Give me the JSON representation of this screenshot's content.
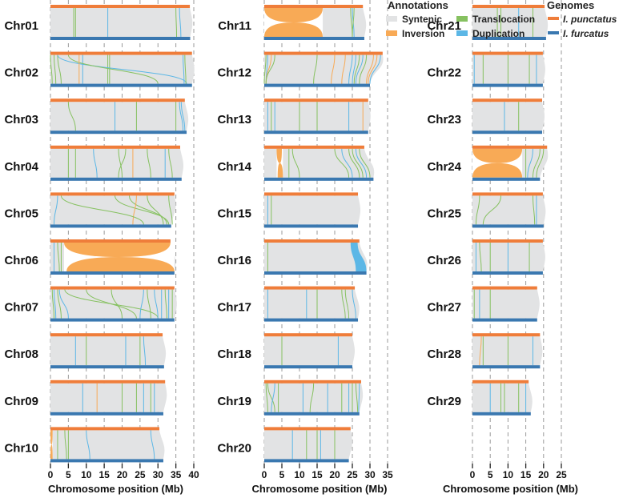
{
  "colors": {
    "top_genome": "#ef7d3a",
    "bottom_genome": "#3a78b0",
    "syntenic": "#e2e3e4",
    "inversion": "#f8aa56",
    "translocation": "#86c160",
    "duplication": "#5cb7e6",
    "grid": "#9a9a9a"
  },
  "legend": {
    "annotations_title": "Annotations",
    "annotations": [
      {
        "key": "S",
        "label": "Syntenic"
      },
      {
        "key": "T",
        "label": "Translocation"
      },
      {
        "key": "I",
        "label": "Inversion"
      },
      {
        "key": "D",
        "label": "Duplication"
      }
    ],
    "genomes_title": "Genomes",
    "genomes": [
      {
        "key": "top",
        "label": "I. punctatus"
      },
      {
        "key": "bottom",
        "label": "I. furcatus"
      }
    ]
  },
  "axis_title": "Chromosome position (Mb)",
  "panels": [
    {
      "ticks": [
        0,
        5,
        10,
        15,
        20,
        25,
        30,
        35,
        40
      ],
      "chromosomes": [
        {
          "name": "Chr01",
          "top": 38.9,
          "bottom": 39,
          "lines": [
            [
              "T",
              6.5,
              6.5
            ],
            [
              "T",
              7,
              7
            ],
            [
              "D",
              16,
              16
            ],
            [
              "T",
              35,
              35.2
            ],
            [
              "D",
              36,
              36.4
            ]
          ]
        },
        {
          "name": "Chr02",
          "top": 39.5,
          "bottom": 39.5,
          "lines": [
            [
              "T",
              0,
              0.5
            ],
            [
              "T",
              1,
              1.5
            ],
            [
              "T",
              2,
              3
            ],
            [
              "D",
              9,
              9
            ],
            [
              "T",
              16,
              16
            ],
            [
              "T",
              16.5,
              16.5
            ],
            [
              "D",
              2,
              38
            ],
            [
              "T",
              5,
              30
            ],
            [
              "I",
              8,
              8
            ],
            [
              "D",
              37,
              37.3
            ],
            [
              "T",
              37.5,
              37.8
            ]
          ]
        },
        {
          "name": "Chr03",
          "top": 37.5,
          "bottom": 38,
          "lines": [
            [
              "T",
              5,
              7
            ],
            [
              "D",
              18,
              18
            ],
            [
              "T",
              24,
              24
            ],
            [
              "T",
              35,
              35
            ],
            [
              "D",
              36,
              37
            ],
            [
              "D",
              36.5,
              37.5
            ]
          ]
        },
        {
          "name": "Chr04",
          "top": 36.2,
          "bottom": 36.6,
          "lines": [
            [
              "T",
              5,
              5
            ],
            [
              "T",
              7,
              7
            ],
            [
              "D",
              12,
              13
            ],
            [
              "T",
              19,
              20
            ],
            [
              "T",
              21,
              19
            ],
            [
              "I",
              23,
              23
            ],
            [
              "T",
              27,
              28
            ],
            [
              "D",
              32,
              32
            ],
            [
              "T",
              33,
              34
            ]
          ]
        },
        {
          "name": "Chr05",
          "top": 34.6,
          "bottom": 33.7,
          "lines": [
            [
              "D",
              2,
              1
            ],
            [
              "T",
              18,
              33
            ],
            [
              "T",
              22,
              32.5
            ],
            [
              "I",
              24,
              23
            ],
            [
              "T",
              27,
              31.5
            ],
            [
              "T",
              33,
              34
            ],
            [
              "T",
              3,
              26
            ]
          ]
        },
        {
          "name": "Chr06",
          "top": 33.5,
          "bottom": 34.6,
          "inversions": [
            [
              3.8,
              33.5,
              4.5,
              34.6
            ]
          ],
          "lines": [
            [
              "D",
              1,
              1
            ],
            [
              "T",
              2,
              2.5
            ],
            [
              "T",
              3,
              3
            ]
          ]
        },
        {
          "name": "Chr07",
          "top": 34.6,
          "bottom": 34.6,
          "lines": [
            [
              "T",
              0.5,
              1
            ],
            [
              "D",
              1,
              1.5
            ],
            [
              "T",
              2,
              3
            ],
            [
              "D",
              2.5,
              5
            ],
            [
              "T",
              4,
              30
            ],
            [
              "T",
              10,
              24
            ],
            [
              "T",
              17,
              20
            ],
            [
              "D",
              26,
              25
            ],
            [
              "T",
              27,
              28
            ],
            [
              "D",
              29,
              30
            ],
            [
              "D",
              31,
              31
            ],
            [
              "T",
              32,
              32.5
            ],
            [
              "D",
              33,
              33
            ],
            [
              "T",
              34,
              34
            ]
          ]
        },
        {
          "name": "Chr08",
          "top": 31.3,
          "bottom": 31.7,
          "lines": [
            [
              "D",
              7,
              7
            ],
            [
              "T",
              10,
              10
            ],
            [
              "D",
              21,
              21
            ],
            [
              "T",
              25,
              25
            ],
            [
              "D",
              26,
              26.5
            ]
          ]
        },
        {
          "name": "Chr09",
          "top": 32,
          "bottom": 31.5,
          "lines": [
            [
              "D",
              9,
              9
            ],
            [
              "I",
              13,
              13
            ],
            [
              "T",
              20,
              20
            ],
            [
              "T",
              24,
              24
            ],
            [
              "D",
              26,
              26
            ],
            [
              "T",
              28,
              28
            ],
            [
              "D",
              29,
              29
            ]
          ]
        },
        {
          "name": "Chr10",
          "top": 30.4,
          "bottom": 31.5,
          "inversions": [
            [
              0,
              0.6,
              0,
              0.6
            ]
          ],
          "lines": [
            [
              "T",
              2,
              2
            ],
            [
              "T",
              4,
              4.5
            ],
            [
              "T",
              5,
              5
            ],
            [
              "D",
              10,
              11
            ],
            [
              "D",
              28,
              29
            ]
          ]
        }
      ]
    },
    {
      "ticks": [
        0,
        5,
        10,
        15,
        20,
        25,
        30,
        35
      ],
      "chromosomes": [
        {
          "name": "Chr11",
          "top": 28,
          "bottom": 28.4,
          "inversions": [
            [
              0,
              16.6,
              0,
              16.6
            ]
          ],
          "lines": [
            [
              "T",
              24.5,
              25
            ],
            [
              "D",
              25,
              25.5
            ],
            [
              "T",
              25.5,
              25
            ]
          ]
        },
        {
          "name": "Chr12",
          "top": 33.6,
          "bottom": 30,
          "lines": [
            [
              "T",
              0.5,
              0
            ],
            [
              "D",
              1,
              0.5
            ],
            [
              "I",
              2,
              0.5
            ],
            [
              "T",
              3,
              0.5
            ],
            [
              "T",
              15,
              14
            ],
            [
              "I",
              20,
              19
            ],
            [
              "I",
              23,
              22
            ],
            [
              "D",
              25,
              24
            ],
            [
              "D",
              26,
              25
            ],
            [
              "T",
              27,
              25.5
            ],
            [
              "D",
              28,
              26
            ],
            [
              "T",
              29,
              27
            ],
            [
              "I",
              31,
              29
            ],
            [
              "I",
              32,
              29.5
            ],
            [
              "D",
              33,
              30
            ]
          ]
        },
        {
          "name": "Chr13",
          "top": 29.5,
          "bottom": 29.5,
          "lines": [
            [
              "D",
              1,
              1
            ],
            [
              "T",
              2,
              2
            ],
            [
              "D",
              3,
              3
            ],
            [
              "T",
              10,
              10
            ],
            [
              "T",
              15,
              15
            ],
            [
              "D",
              24,
              24
            ],
            [
              "I",
              28,
              28
            ]
          ]
        },
        {
          "name": "Chr14",
          "top": 28.4,
          "bottom": 31,
          "inversions": [
            [
              3.5,
              5,
              3.8,
              5.3
            ]
          ],
          "lines": [
            [
              "T",
              7,
              7
            ],
            [
              "T",
              8,
              10
            ],
            [
              "T",
              20,
              24
            ],
            [
              "D",
              22,
              25
            ],
            [
              "T",
              24,
              27
            ],
            [
              "T",
              25,
              28
            ],
            [
              "D",
              26,
              29
            ],
            [
              "T",
              27,
              30
            ]
          ]
        },
        {
          "name": "Chr15",
          "top": 26.6,
          "bottom": 26.6,
          "lines": [
            [
              "D",
              1,
              1
            ],
            [
              "T",
              2,
              2
            ]
          ]
        },
        {
          "name": "Chr16",
          "top": 27,
          "bottom": 29,
          "dups": [
            [
              24.5,
              26.5,
              26,
              29
            ]
          ],
          "lines": [
            [
              "T",
              1,
              1
            ]
          ]
        },
        {
          "name": "Chr17",
          "top": 25.7,
          "bottom": 26.6,
          "lines": [
            [
              "D",
              1,
              1
            ],
            [
              "D",
              12,
              12
            ],
            [
              "T",
              15,
              15
            ],
            [
              "T",
              22,
              23
            ],
            [
              "T",
              23,
              24
            ],
            [
              "D",
              25,
              26
            ]
          ]
        },
        {
          "name": "Chr18",
          "top": 25,
          "bottom": 25,
          "lines": [
            [
              "T",
              5,
              5
            ],
            [
              "D",
              21,
              21
            ]
          ]
        },
        {
          "name": "Chr19",
          "top": 27.5,
          "bottom": 27,
          "lines": [
            [
              "T",
              0.5,
              1
            ],
            [
              "T",
              1,
              3
            ],
            [
              "D",
              3,
              2
            ],
            [
              "T",
              4,
              4
            ],
            [
              "D",
              11,
              11
            ],
            [
              "T",
              14,
              13
            ],
            [
              "D",
              18,
              18
            ],
            [
              "T",
              22,
              22
            ],
            [
              "D",
              24,
              24
            ],
            [
              "T",
              25,
              25
            ],
            [
              "T",
              26,
              26.5
            ],
            [
              "D",
              27,
              26.8
            ]
          ]
        },
        {
          "name": "Chr20",
          "top": 24.5,
          "bottom": 24,
          "lines": [
            [
              "D",
              8,
              8
            ],
            [
              "T",
              12,
              12
            ],
            [
              "T",
              15,
              15
            ],
            [
              "D",
              16,
              16
            ],
            [
              "T",
              20,
              20
            ]
          ]
        }
      ]
    },
    {
      "ticks": [
        0,
        5,
        10,
        15,
        20,
        25
      ],
      "chromosomes": [
        {
          "name": "Chr21",
          "top": 20.3,
          "bottom": 20.7,
          "lines": [
            [
              "T",
              7,
              7
            ],
            [
              "T",
              8,
              8
            ],
            [
              "D",
              13,
              13
            ],
            [
              "T",
              17,
              17
            ]
          ]
        },
        {
          "name": "Chr22",
          "top": 19.8,
          "bottom": 19.8,
          "lines": [
            [
              "D",
              0.5,
              0.5
            ],
            [
              "T",
              3,
              3
            ],
            [
              "T",
              10,
              10
            ],
            [
              "T",
              16,
              16
            ],
            [
              "D",
              18,
              18
            ]
          ]
        },
        {
          "name": "Chr23",
          "top": 19.6,
          "bottom": 19.6,
          "lines": [
            [
              "D",
              9,
              9
            ],
            [
              "T",
              13,
              13
            ]
          ]
        },
        {
          "name": "Chr24",
          "top": 21,
          "bottom": 19,
          "inversions": [
            [
              0,
              14,
              0,
              14
            ]
          ],
          "lines": [
            [
              "T",
              15,
              15
            ],
            [
              "D",
              17,
              15.5
            ],
            [
              "T",
              19,
              17
            ],
            [
              "T",
              20,
              18
            ]
          ]
        },
        {
          "name": "Chr25",
          "top": 19.8,
          "bottom": 20,
          "lines": [
            [
              "T",
              2,
              1
            ],
            [
              "T",
              8,
              3
            ],
            [
              "T",
              17,
              17.5
            ],
            [
              "D",
              18,
              18
            ]
          ]
        },
        {
          "name": "Chr26",
          "top": 19.8,
          "bottom": 19.8,
          "lines": [
            [
              "D",
              1,
              1
            ],
            [
              "T",
              2,
              2.5
            ],
            [
              "T",
              5,
              5
            ],
            [
              "D",
              10,
              10
            ],
            [
              "T",
              16,
              16
            ]
          ]
        },
        {
          "name": "Chr27",
          "top": 18.2,
          "bottom": 18.2,
          "lines": [
            [
              "T",
              0.5,
              0.5
            ],
            [
              "D",
              2,
              2
            ],
            [
              "T",
              5,
              5
            ]
          ]
        },
        {
          "name": "Chr28",
          "top": 19,
          "bottom": 19,
          "lines": [
            [
              "I",
              2.5,
              2
            ],
            [
              "T",
              3,
              3
            ],
            [
              "T",
              10,
              10
            ],
            [
              "D",
              17,
              17
            ]
          ]
        },
        {
          "name": "Chr29",
          "top": 15.8,
          "bottom": 16.4,
          "lines": [
            [
              "D",
              5,
              5
            ],
            [
              "T",
              8,
              8
            ],
            [
              "T",
              9,
              9
            ],
            [
              "T",
              13,
              13
            ],
            [
              "D",
              15,
              15
            ]
          ]
        }
      ]
    }
  ]
}
